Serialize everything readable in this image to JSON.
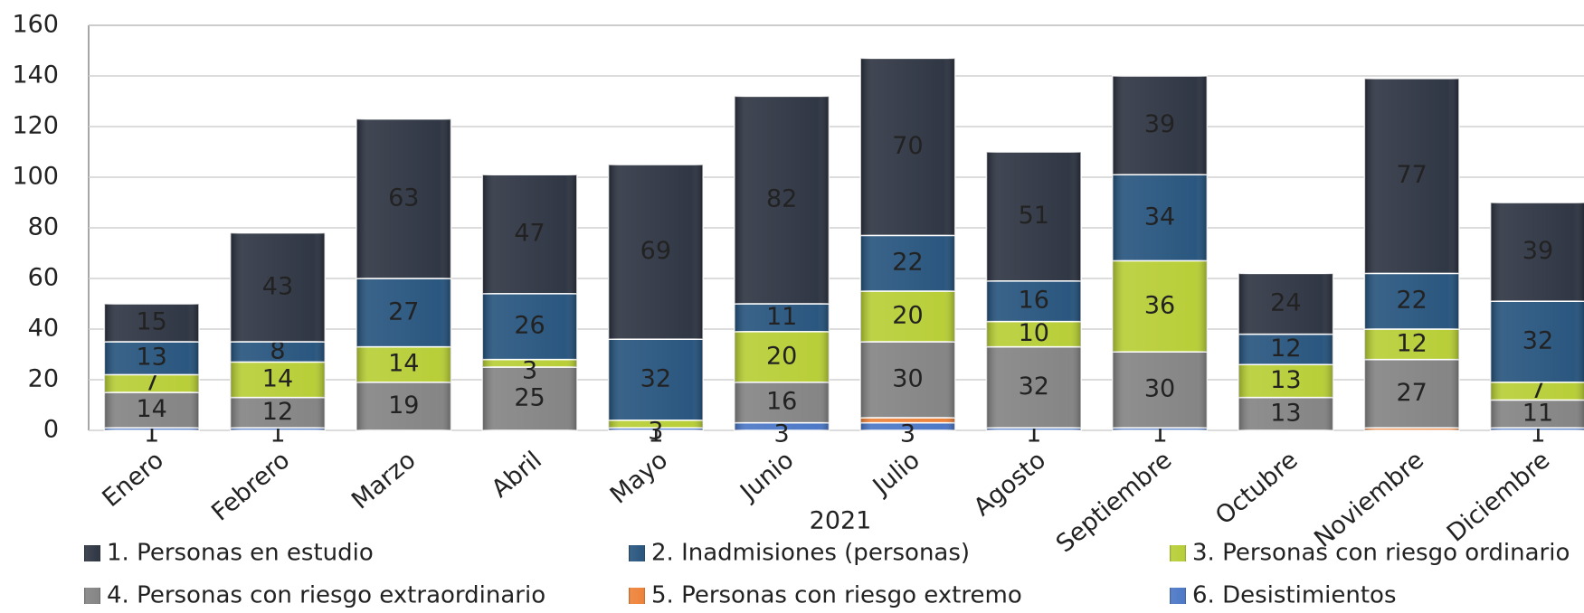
{
  "chart_data": {
    "type": "stacked_bar",
    "categories": [
      "Enero",
      "Febrero",
      "Marzo",
      "Abril",
      "Mayo",
      "Junio",
      "Julio",
      "Agosto",
      "Septiembre",
      "Octubre",
      "Noviembre",
      "Diciembre"
    ],
    "xlabel": "2021",
    "ylim": [
      0,
      160
    ],
    "yticks": [
      0,
      20,
      40,
      60,
      80,
      100,
      120,
      140,
      160
    ],
    "grid": true,
    "legend": "bottom",
    "series": [
      {
        "name": "6. Desistimientos",
        "color": "#4472c4",
        "values": [
          1,
          1,
          null,
          null,
          1,
          3,
          3,
          1,
          1,
          null,
          null,
          1
        ]
      },
      {
        "name": "5. Personas con riesgo extremo",
        "color": "#ed7d31",
        "labels": false,
        "values": [
          null,
          null,
          null,
          null,
          null,
          null,
          2,
          null,
          null,
          null,
          1,
          null
        ]
      },
      {
        "name": "4. Personas con riesgo extraordinario",
        "color": "#7f7f7f",
        "values": [
          14,
          12,
          19,
          25,
          null,
          16,
          30,
          32,
          30,
          13,
          27,
          11
        ]
      },
      {
        "name": "3. Personas con riesgo ordinario",
        "color": "#b5cc2e",
        "values": [
          7,
          14,
          14,
          3,
          3,
          20,
          20,
          10,
          36,
          13,
          12,
          7
        ]
      },
      {
        "name": "2. Inadmisiones (personas)",
        "color": "#1f4e79",
        "values": [
          13,
          8,
          27,
          26,
          32,
          11,
          22,
          16,
          34,
          12,
          22,
          32
        ]
      },
      {
        "name": "1. Personas en estudio",
        "color": "#262d3b",
        "values": [
          15,
          43,
          63,
          47,
          69,
          82,
          70,
          51,
          39,
          24,
          77,
          39
        ]
      }
    ]
  }
}
